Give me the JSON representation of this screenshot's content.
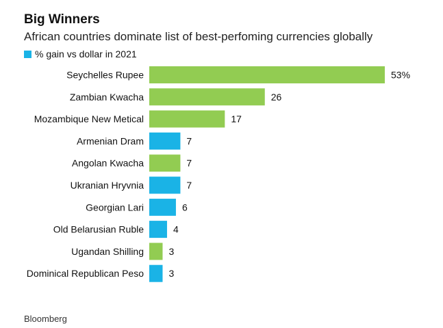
{
  "title": "Big Winners",
  "subtitle": "African countries dominate list of best-perfoming currencies globally",
  "legend_label": "% gain vs dollar in 2021",
  "source": "Bloomberg",
  "colors": {
    "african": "#92cc52",
    "other": "#1ab3e6",
    "legend": "#1ab3e6"
  },
  "chart_data": {
    "type": "bar",
    "orientation": "horizontal",
    "categories": [
      "Seychelles Rupee",
      "Zambian Kwacha",
      "Mozambique New Metical",
      "Armenian Dram",
      "Angolan Kwacha",
      "Ukranian Hryvnia",
      "Georgian Lari",
      "Old Belarusian Ruble",
      "Ugandan Shilling",
      "Dominical Republican Peso"
    ],
    "values": [
      53,
      26,
      17,
      7,
      7,
      7,
      6,
      4,
      3,
      3
    ],
    "value_labels": [
      "53%",
      "26",
      "17",
      "7",
      "7",
      "7",
      "6",
      "4",
      "3",
      "3"
    ],
    "group": [
      "african",
      "african",
      "african",
      "other",
      "african",
      "other",
      "other",
      "other",
      "african",
      "other"
    ],
    "series": [
      {
        "name": "% gain vs dollar in 2021",
        "values": [
          53,
          26,
          17,
          7,
          7,
          7,
          6,
          4,
          3,
          3
        ]
      }
    ],
    "xlim": [
      0,
      53
    ]
  }
}
